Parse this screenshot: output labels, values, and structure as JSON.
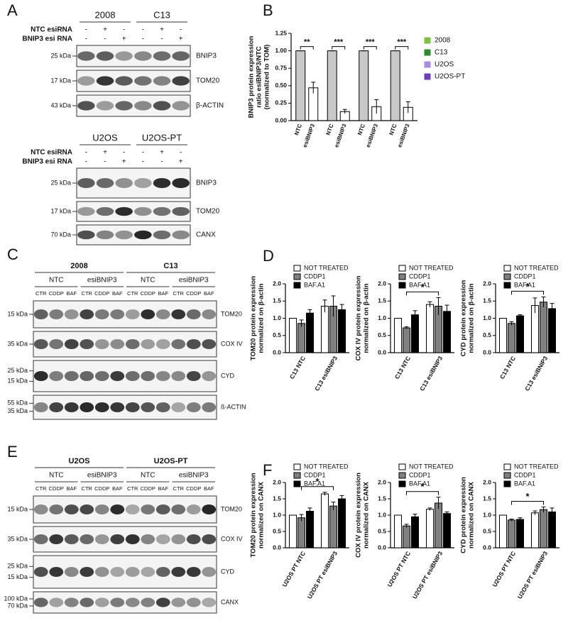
{
  "panel_labels": [
    "A",
    "B",
    "C",
    "D",
    "E",
    "F"
  ],
  "blots": {
    "a_top": {
      "groups": [
        "2008",
        "C13"
      ],
      "rows": [
        {
          "label": "NTC esiRNA",
          "signs": [
            "-",
            "+",
            "-",
            "-",
            "+",
            "-"
          ]
        },
        {
          "label": "BNIP3 esi RNA",
          "signs": [
            "-",
            "-",
            "+",
            "-",
            "-",
            "+"
          ]
        }
      ],
      "bands": [
        {
          "name": "BNIP3",
          "markers": [
            "25 kDa"
          ]
        },
        {
          "name": "TOM20",
          "markers": [
            "17 kDa"
          ]
        },
        {
          "name": "β-ACTIN",
          "markers": [
            "43 kDa"
          ]
        }
      ]
    },
    "a_bottom": {
      "groups": [
        "U2OS",
        "U2OS-PT"
      ],
      "rows": [
        {
          "label": "NTC esiRNA",
          "signs": [
            "-",
            "+",
            "-",
            "-",
            "+",
            "-"
          ]
        },
        {
          "label": "BNIP3 esi RNA",
          "signs": [
            "-",
            "-",
            "+",
            "-",
            "-",
            "+"
          ]
        }
      ],
      "bands": [
        {
          "name": "BNIP3",
          "markers": [
            "25 kDa"
          ]
        },
        {
          "name": "TOM20",
          "markers": [
            "17 kDa"
          ]
        },
        {
          "name": "CANX",
          "markers": [
            "70 kDa"
          ]
        }
      ]
    },
    "c": {
      "groups": [
        "2008",
        "C13"
      ],
      "subgroups": [
        "NTC",
        "esiBNIP3",
        "NTC",
        "esiBNIP3"
      ],
      "lanes": [
        "CTR",
        "CDDP",
        "BAF",
        "CTR",
        "CDDP",
        "BAF",
        "CTR",
        "CDDP",
        "BAF",
        "CTR",
        "CDDP",
        "BAF"
      ],
      "bands": [
        {
          "name": "TOM20",
          "markers": [
            "15 kDa"
          ]
        },
        {
          "name": "COX IV",
          "markers": [
            "35 kDa"
          ]
        },
        {
          "name": "CYD",
          "markers": [
            "25 kDa",
            "15 kDa"
          ]
        },
        {
          "name": "ß-ACTIN",
          "markers": [
            "55 kDa",
            "35 kDa"
          ]
        }
      ]
    },
    "e": {
      "groups": [
        "U2OS",
        "U2OS-PT"
      ],
      "subgroups": [
        "NTC",
        "esiBNIP3",
        "NTC",
        "esiBNIP3"
      ],
      "lanes": [
        "CTR",
        "CDDP",
        "BAF",
        "CTR",
        "CDDP",
        "BAF",
        "CTR",
        "CDDP",
        "BAF",
        "CTR",
        "CDDP",
        "BAF"
      ],
      "bands": [
        {
          "name": "TOM20",
          "markers": [
            "15 kDa"
          ]
        },
        {
          "name": "COX IV",
          "markers": [
            "35 kDa"
          ]
        },
        {
          "name": "CYD",
          "markers": [
            "25 kDa",
            "15 kDa"
          ]
        },
        {
          "name": "CANX",
          "markers": [
            "100 kDa",
            "70 kDa"
          ]
        }
      ]
    }
  },
  "chart_data": [
    {
      "type": "bar",
      "ylabel": [
        "BNIP3 protein expression",
        "ratio esiBNIP3/NTC",
        "(normalized to TOM)"
      ],
      "categories": [
        "NTC",
        "esiBNIP3"
      ],
      "bar_colors": [
        "#c8c8c8",
        "#ffffff"
      ],
      "series": [
        {
          "name": "2008",
          "color": "#7dc242",
          "values": [
            1.0,
            0.47
          ],
          "errors": [
            0,
            0.08
          ]
        },
        {
          "name": "C13",
          "color": "#2d8a2d",
          "values": [
            1.0,
            0.13
          ],
          "errors": [
            0,
            0.03
          ]
        },
        {
          "name": "U2OS",
          "color": "#a88be0",
          "values": [
            1.0,
            0.2
          ],
          "errors": [
            0,
            0.1
          ]
        },
        {
          "name": "U2OS-PT",
          "color": "#6b3fb8",
          "values": [
            1.0,
            0.19
          ],
          "errors": [
            0,
            0.08
          ]
        }
      ],
      "significance": [
        "**",
        "***",
        "***",
        "***"
      ],
      "ylim": [
        0,
        1.25
      ],
      "yticks": [
        {
          "value": 0,
          "label": "0.00"
        },
        {
          "value": 0.25,
          "label": "0.25"
        },
        {
          "value": 0.5,
          "label": "0.50"
        },
        {
          "value": 0.75,
          "label": "0.75"
        },
        {
          "value": 1,
          "label": "1.00"
        },
        {
          "value": 1.25,
          "label": "1.25"
        }
      ]
    },
    {
      "type": "bar",
      "ylabel": [
        "TOM20 protein expression",
        "normalized on β-actin"
      ],
      "categories": [
        "C13 NTC",
        "C13 esiBNIP3"
      ],
      "series": [
        {
          "name": "NOT TREATED",
          "color": "#ffffff",
          "values": [
            1.0,
            1.35
          ],
          "errors": [
            0,
            0.18
          ]
        },
        {
          "name": "CDDP1",
          "color": "#808080",
          "values": [
            0.85,
            1.35
          ],
          "errors": [
            0.1,
            0.3
          ]
        },
        {
          "name": "BAF.A1",
          "color": "#000000",
          "values": [
            1.15,
            1.25
          ],
          "errors": [
            0.1,
            0.15
          ]
        }
      ],
      "ylim": [
        0,
        2
      ],
      "yticks": [
        {
          "value": 0,
          "label": "0.0"
        },
        {
          "value": 0.5,
          "label": "0.5"
        },
        {
          "value": 1,
          "label": "1.0"
        },
        {
          "value": 1.5,
          "label": "1.5"
        },
        {
          "value": 2,
          "label": "2.0"
        }
      ]
    },
    {
      "type": "bar",
      "ylabel": [
        "COX IV protein expression",
        "normalized on β-actin"
      ],
      "categories": [
        "C13 NTC",
        "C13 esiBNIP3"
      ],
      "series": [
        {
          "name": "NOT TREATED",
          "color": "#ffffff",
          "values": [
            1.0,
            1.4
          ],
          "errors": [
            0,
            0.08
          ]
        },
        {
          "name": "CDDP1",
          "color": "#808080",
          "values": [
            0.72,
            1.35
          ],
          "errors": [
            0.03,
            0.25
          ]
        },
        {
          "name": "BAF.A1",
          "color": "#000000",
          "values": [
            1.1,
            1.2
          ],
          "errors": [
            0.12,
            0.18
          ]
        }
      ],
      "significance": "*",
      "ylim": [
        0,
        2
      ],
      "yticks": [
        {
          "value": 0,
          "label": "0.0"
        },
        {
          "value": 0.5,
          "label": "0.5"
        },
        {
          "value": 1,
          "label": "1.0"
        },
        {
          "value": 1.5,
          "label": "1.5"
        },
        {
          "value": 2,
          "label": "2.0"
        }
      ]
    },
    {
      "type": "bar",
      "ylabel": [
        "CYD protein expression",
        "normalized on β-actin"
      ],
      "categories": [
        "C13 NTC",
        "C13 esiBNIP3"
      ],
      "series": [
        {
          "name": "NOT TREATED",
          "color": "#ffffff",
          "values": [
            1.0,
            1.37
          ],
          "errors": [
            0,
            0.22
          ]
        },
        {
          "name": "CDDP1",
          "color": "#808080",
          "values": [
            0.85,
            1.47
          ],
          "errors": [
            0.05,
            0.15
          ]
        },
        {
          "name": "BAF.A1",
          "color": "#000000",
          "values": [
            1.07,
            1.28
          ],
          "errors": [
            0.03,
            0.15
          ]
        }
      ],
      "significance": "*",
      "ylim": [
        0,
        2
      ],
      "yticks": [
        {
          "value": 0,
          "label": "0.0"
        },
        {
          "value": 0.5,
          "label": "0.5"
        },
        {
          "value": 1,
          "label": "1.0"
        },
        {
          "value": 1.5,
          "label": "1.5"
        },
        {
          "value": 2,
          "label": "2.0"
        }
      ]
    },
    {
      "type": "bar",
      "ylabel": [
        "TOM20 protein expression",
        "normalized on CANX"
      ],
      "categories": [
        "U2OS PT NTC",
        "U2OS PT esiBNIP3"
      ],
      "series": [
        {
          "name": "NOT TREATED",
          "color": "#ffffff",
          "values": [
            1.0,
            1.65
          ],
          "errors": [
            0,
            0.05
          ]
        },
        {
          "name": "CDDP1",
          "color": "#808080",
          "values": [
            0.92,
            1.28
          ],
          "errors": [
            0.1,
            0.12
          ]
        },
        {
          "name": "BAF.A1",
          "color": "#000000",
          "values": [
            1.12,
            1.5
          ],
          "errors": [
            0.1,
            0.1
          ]
        }
      ],
      "significance": "*",
      "ylim": [
        0,
        2
      ],
      "yticks": [
        {
          "value": 0,
          "label": "0.0"
        },
        {
          "value": 0.5,
          "label": "0.5"
        },
        {
          "value": 1,
          "label": "1.0"
        },
        {
          "value": 1.5,
          "label": "1.5"
        },
        {
          "value": 2,
          "label": "2.0"
        }
      ]
    },
    {
      "type": "bar",
      "ylabel": [
        "COX IV protein expression",
        "normalized on CANX"
      ],
      "categories": [
        "U2OS PT NTC",
        "U2OS PT esiBNIP3"
      ],
      "series": [
        {
          "name": "NOT TREATED",
          "color": "#ffffff",
          "values": [
            1.0,
            1.18
          ],
          "errors": [
            0,
            0.04
          ]
        },
        {
          "name": "CDDP1",
          "color": "#808080",
          "values": [
            0.67,
            1.37
          ],
          "errors": [
            0.05,
            0.18
          ]
        },
        {
          "name": "BAF.A1",
          "color": "#000000",
          "values": [
            0.95,
            1.05
          ],
          "errors": [
            0.08,
            0.05
          ]
        }
      ],
      "significance": "*",
      "ylim": [
        0,
        2
      ],
      "yticks": [
        {
          "value": 0,
          "label": "0.0"
        },
        {
          "value": 0.5,
          "label": "0.5"
        },
        {
          "value": 1,
          "label": "1.0"
        },
        {
          "value": 1.5,
          "label": "1.5"
        },
        {
          "value": 2,
          "label": "2.0"
        }
      ]
    },
    {
      "type": "bar",
      "ylabel": [
        "CYD protein expression",
        "normalized on CANX"
      ],
      "categories": [
        "U2OS PT NTC",
        "U2OS PT esiBNIP3"
      ],
      "series": [
        {
          "name": "NOT TREATED",
          "color": "#ffffff",
          "values": [
            1.0,
            1.07
          ],
          "errors": [
            0,
            0.06
          ]
        },
        {
          "name": "CDDP1",
          "color": "#808080",
          "values": [
            0.85,
            1.17
          ],
          "errors": [
            0.03,
            0.08
          ]
        },
        {
          "name": "BAF.A1",
          "color": "#000000",
          "values": [
            0.87,
            1.1
          ],
          "errors": [
            0.05,
            0.12
          ]
        }
      ],
      "significance": "*",
      "ylim": [
        0,
        2
      ],
      "yticks": [
        {
          "value": 0,
          "label": "0.0"
        },
        {
          "value": 0.5,
          "label": "0.5"
        },
        {
          "value": 1,
          "label": "1.0"
        },
        {
          "value": 1.5,
          "label": "1.5"
        },
        {
          "value": 2,
          "label": "2.0"
        }
      ]
    }
  ]
}
